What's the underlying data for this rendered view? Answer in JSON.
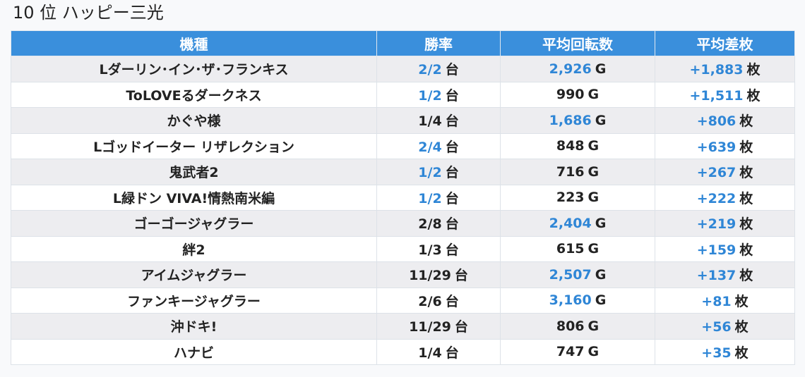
{
  "title": "10 位 ハッピー三光",
  "headers": {
    "model": "機種",
    "win_rate": "勝率",
    "avg_spins": "平均回転数",
    "avg_diff": "平均差枚"
  },
  "units": {
    "machines": "台",
    "games": "G",
    "medals": "枚"
  },
  "colors": {
    "header_bg": "#3a8fdc",
    "highlight": "#2f86d6"
  },
  "rows": [
    {
      "model": "Lダーリン･イン･ザ･フランキス",
      "win_rate": "2/2",
      "win_hl": true,
      "spins": "2,926",
      "spins_hl": true,
      "diff": "+1,883",
      "diff_hl": true
    },
    {
      "model": "ToLOVEるダークネス",
      "win_rate": "1/2",
      "win_hl": true,
      "spins": "990",
      "spins_hl": false,
      "diff": "+1,511",
      "diff_hl": true
    },
    {
      "model": "かぐや様",
      "win_rate": "1/4",
      "win_hl": false,
      "spins": "1,686",
      "spins_hl": true,
      "diff": "+806",
      "diff_hl": true
    },
    {
      "model": "Lゴッドイーター リザレクション",
      "win_rate": "2/4",
      "win_hl": true,
      "spins": "848",
      "spins_hl": false,
      "diff": "+639",
      "diff_hl": true
    },
    {
      "model": "鬼武者2",
      "win_rate": "1/2",
      "win_hl": true,
      "spins": "716",
      "spins_hl": false,
      "diff": "+267",
      "diff_hl": true
    },
    {
      "model": "L緑ドン VIVA!情熱南米編",
      "win_rate": "1/2",
      "win_hl": true,
      "spins": "223",
      "spins_hl": false,
      "diff": "+222",
      "diff_hl": true
    },
    {
      "model": "ゴーゴージャグラー",
      "win_rate": "2/8",
      "win_hl": false,
      "spins": "2,404",
      "spins_hl": true,
      "diff": "+219",
      "diff_hl": true
    },
    {
      "model": "絆2",
      "win_rate": "1/3",
      "win_hl": false,
      "spins": "615",
      "spins_hl": false,
      "diff": "+159",
      "diff_hl": true
    },
    {
      "model": "アイムジャグラー",
      "win_rate": "11/29",
      "win_hl": false,
      "spins": "2,507",
      "spins_hl": true,
      "diff": "+137",
      "diff_hl": true
    },
    {
      "model": "ファンキージャグラー",
      "win_rate": "2/6",
      "win_hl": false,
      "spins": "3,160",
      "spins_hl": true,
      "diff": "+81",
      "diff_hl": true
    },
    {
      "model": "沖ドキ!",
      "win_rate": "11/29",
      "win_hl": false,
      "spins": "806",
      "spins_hl": false,
      "diff": "+56",
      "diff_hl": true
    },
    {
      "model": "ハナビ",
      "win_rate": "1/4",
      "win_hl": false,
      "spins": "747",
      "spins_hl": false,
      "diff": "+35",
      "diff_hl": true
    }
  ]
}
